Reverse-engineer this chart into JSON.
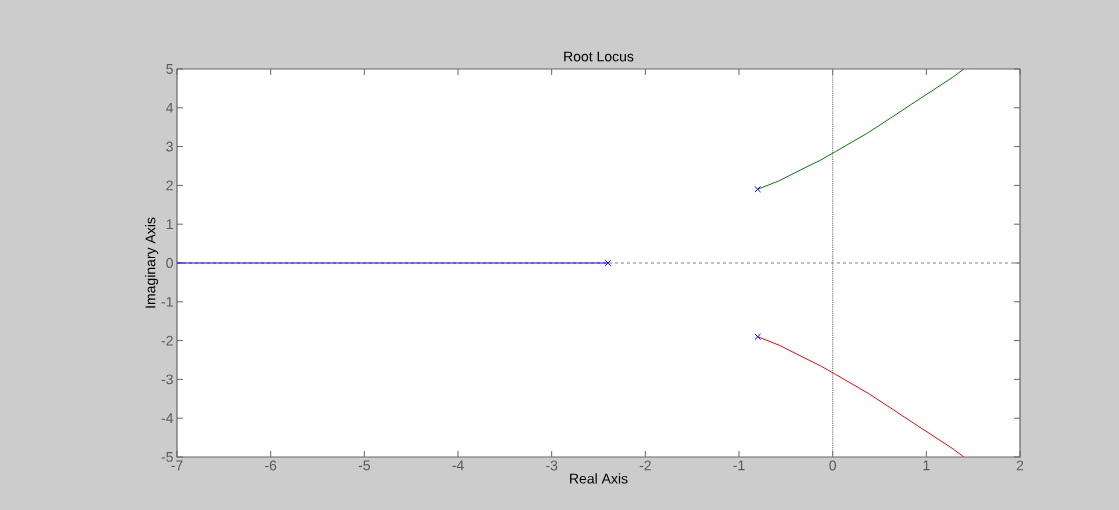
{
  "chart_data": {
    "type": "line",
    "title": "Root Locus",
    "xlabel": "Real Axis",
    "ylabel": "Imaginary Axis",
    "xlim": [
      -7,
      2
    ],
    "ylim": [
      -5,
      5
    ],
    "xticks": [
      -7,
      -6,
      -5,
      -4,
      -3,
      -2,
      -1,
      0,
      1,
      2
    ],
    "yticks": [
      -5,
      -4,
      -3,
      -2,
      -1,
      0,
      1,
      2,
      3,
      4,
      5
    ],
    "series": [
      {
        "color": "#0000ff",
        "x": [
          -7,
          -2.4
        ],
        "values": [
          0,
          0
        ]
      },
      {
        "color": "#008000",
        "x": [
          -0.8,
          -0.57,
          -0.34,
          -0.13,
          0.03,
          0.38,
          0.64,
          0.84,
          1.05,
          1.29,
          1.4
        ],
        "values": [
          1.9,
          2.12,
          2.4,
          2.65,
          2.87,
          3.36,
          3.77,
          4.09,
          4.42,
          4.8,
          5
        ]
      },
      {
        "color": "#ff0000",
        "x": [
          -0.8,
          -0.57,
          -0.34,
          -0.13,
          0.03,
          0.38,
          0.64,
          0.84,
          1.05,
          1.29,
          1.4
        ],
        "values": [
          -1.9,
          -2.12,
          -2.4,
          -2.65,
          -2.87,
          -3.36,
          -3.77,
          -4.09,
          -4.42,
          -4.8,
          -5
        ]
      },
      {
        "type": "scatter",
        "marker": "cross",
        "color": "#0000ff",
        "x": [
          -2.4,
          -0.8,
          -0.8
        ],
        "values": [
          0,
          1.9,
          -1.9
        ]
      }
    ],
    "ref_lines": [
      {
        "axis": "x",
        "value": 0,
        "line_style": "dotted",
        "color": "#808080"
      },
      {
        "axis": "y",
        "value": 0,
        "line_style": "dashed",
        "color": "#808080"
      }
    ]
  }
}
